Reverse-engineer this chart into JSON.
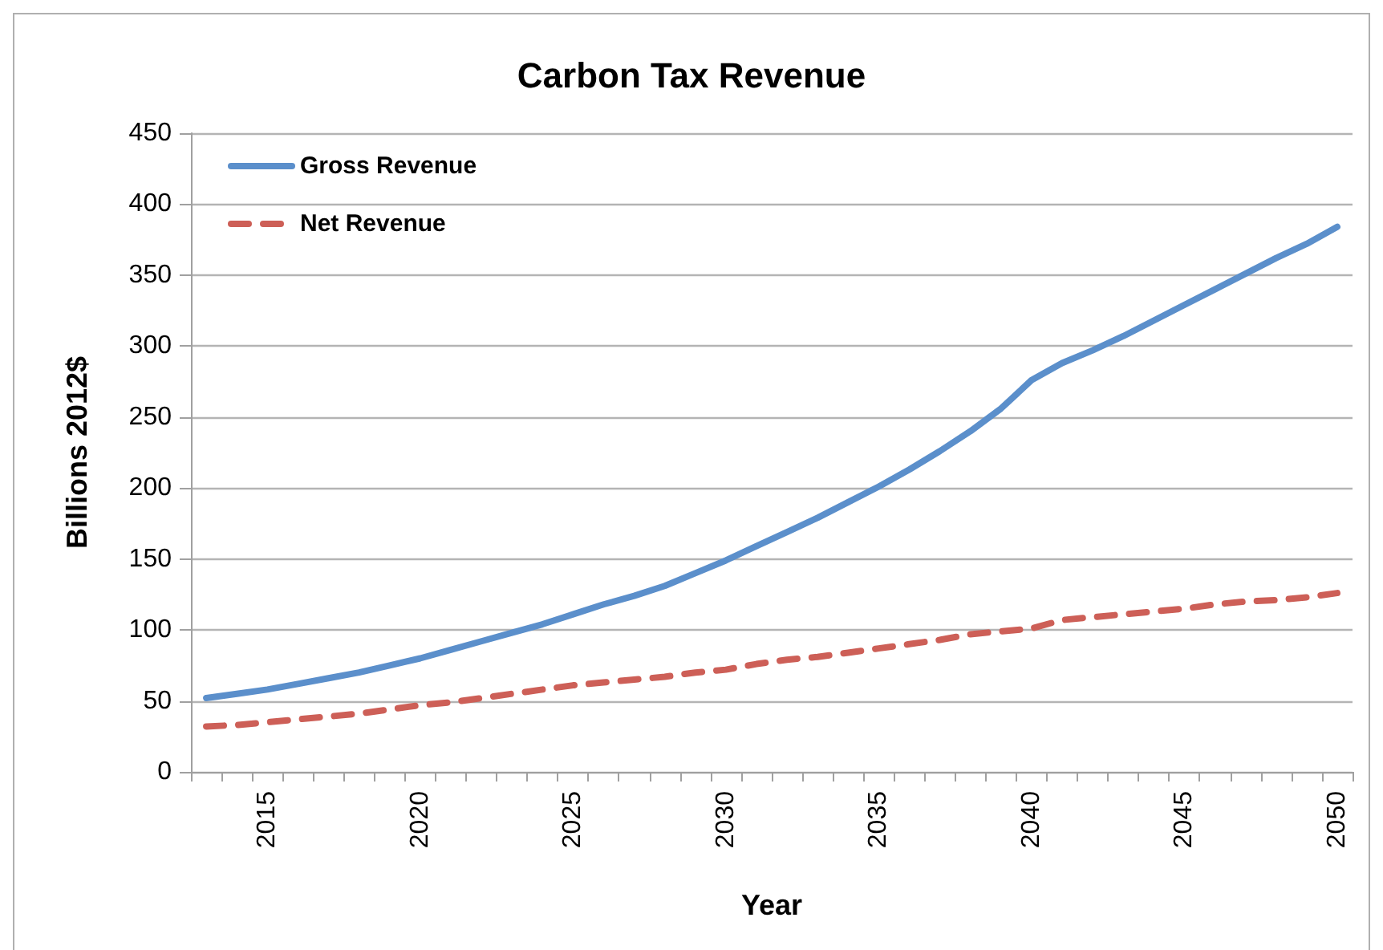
{
  "chart_data": {
    "type": "line",
    "title": "Carbon Tax Revenue",
    "xlabel": "Year",
    "ylabel": "Billions 2012$",
    "categories": [
      null,
      null,
      "2015",
      null,
      null,
      null,
      null,
      "2020",
      null,
      null,
      null,
      null,
      "2025",
      null,
      null,
      null,
      null,
      "2030",
      null,
      null,
      null,
      null,
      "2035",
      null,
      null,
      null,
      null,
      "2040",
      null,
      null,
      null,
      null,
      "2045",
      null,
      null,
      null,
      null,
      "2050"
    ],
    "series": [
      {
        "name": "Gross Revenue",
        "color": "#5b8fcb",
        "values": [
          52,
          55,
          58,
          62,
          66,
          70,
          75,
          80,
          86,
          92,
          98,
          104,
          111,
          118,
          124,
          131,
          140,
          149,
          159,
          169,
          179,
          190,
          201,
          213,
          226,
          240,
          256,
          276,
          288,
          297,
          307,
          318,
          329,
          340,
          351,
          362,
          372,
          384
        ]
      },
      {
        "name": "Net Revenue",
        "color": "#cd5f57",
        "line_style": "dashed",
        "values": [
          32,
          33,
          35,
          37,
          39,
          41,
          44,
          47,
          49,
          52,
          55,
          58,
          61,
          63,
          65,
          67,
          70,
          72,
          76,
          79,
          81,
          84,
          87,
          90,
          93,
          97,
          99,
          101,
          107,
          109,
          111,
          113,
          115,
          118,
          120,
          121,
          123,
          126
        ]
      }
    ],
    "ylim": [
      0,
      450
    ],
    "yticks": [
      0,
      50,
      100,
      150,
      200,
      250,
      300,
      350,
      400,
      450
    ],
    "grid": "y",
    "legend": "top left",
    "marker": "none",
    "line_style": "solid"
  }
}
